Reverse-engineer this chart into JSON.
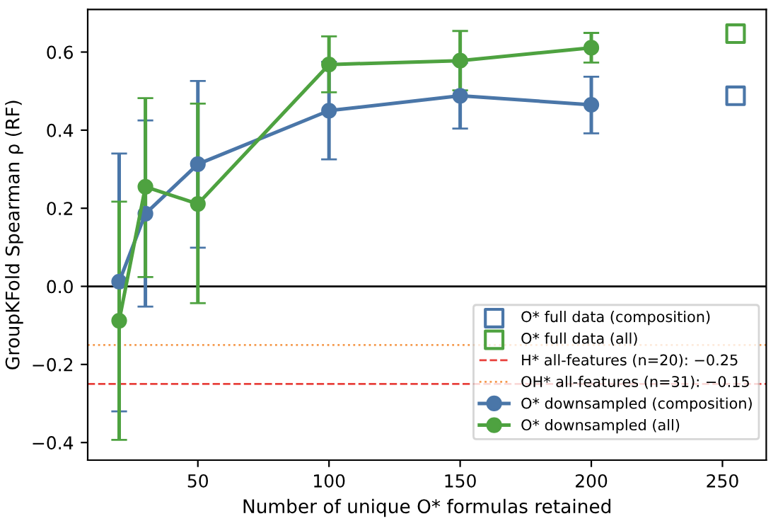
{
  "chart_data": {
    "type": "line",
    "xlabel": "Number of unique O* formulas retained",
    "ylabel": "GroupKFold Spearman ρ (RF)",
    "xlim": [
      8,
      266.7
    ],
    "xticks": [
      50,
      100,
      150,
      200,
      250
    ],
    "ylim": [
      -0.445,
      0.709
    ],
    "yticks": [
      {
        "value": -0.4,
        "label": "−0.4"
      },
      {
        "value": -0.2,
        "label": "−0.2"
      },
      {
        "value": 0,
        "label": "0.0"
      },
      {
        "value": 0.2,
        "label": "0.2"
      },
      {
        "value": 0.4,
        "label": "0.4"
      },
      {
        "value": 0.6,
        "label": "0.6"
      }
    ],
    "grid": false,
    "legend": "lower right",
    "ref_lines": [
      {
        "axis": "y",
        "value": 0,
        "label": null,
        "color": "#000000",
        "line_style": "solid"
      },
      {
        "axis": "y",
        "value": -0.25,
        "label": "H* all-features (n=20): −0.25",
        "color": "#e8413c",
        "line_style": "dashed"
      },
      {
        "axis": "y",
        "value": -0.15,
        "label": "OH* all-features (n=31): −0.15",
        "color": "#f59a4e",
        "line_style": "dotted"
      }
    ],
    "series": [
      {
        "name": "O* full data (composition)",
        "type": "scatter",
        "marker": "square",
        "color": "#4a76a8",
        "x": [
          255
        ],
        "values": [
          0.488
        ]
      },
      {
        "name": "O* full data (all)",
        "type": "scatter",
        "marker": "square",
        "color": "#4ea240",
        "x": [
          255
        ],
        "values": [
          0.647
        ]
      },
      {
        "name": "O* downsampled (composition)",
        "marker": "circle",
        "color": "#4a76a8",
        "x": [
          20,
          30,
          50,
          100,
          150,
          200
        ],
        "values": [
          0.012,
          0.186,
          0.313,
          0.45,
          0.488,
          0.465
        ],
        "errors": [
          [
            -0.32,
            0.34
          ],
          [
            -0.052,
            0.425
          ],
          [
            0.099,
            0.526
          ],
          [
            0.325,
            0.575
          ],
          [
            0.404,
            0.572
          ],
          [
            0.392,
            0.537
          ]
        ]
      },
      {
        "name": "O* downsampled (all)",
        "marker": "circle",
        "color": "#4ea240",
        "x": [
          20,
          30,
          50,
          100,
          150,
          200
        ],
        "values": [
          -0.088,
          0.255,
          0.211,
          0.568,
          0.578,
          0.611
        ],
        "errors": [
          [
            -0.393,
            0.217
          ],
          [
            0.024,
            0.482
          ],
          [
            -0.043,
            0.468
          ],
          [
            0.497,
            0.64
          ],
          [
            0.502,
            0.654
          ],
          [
            0.573,
            0.649
          ]
        ]
      }
    ]
  }
}
